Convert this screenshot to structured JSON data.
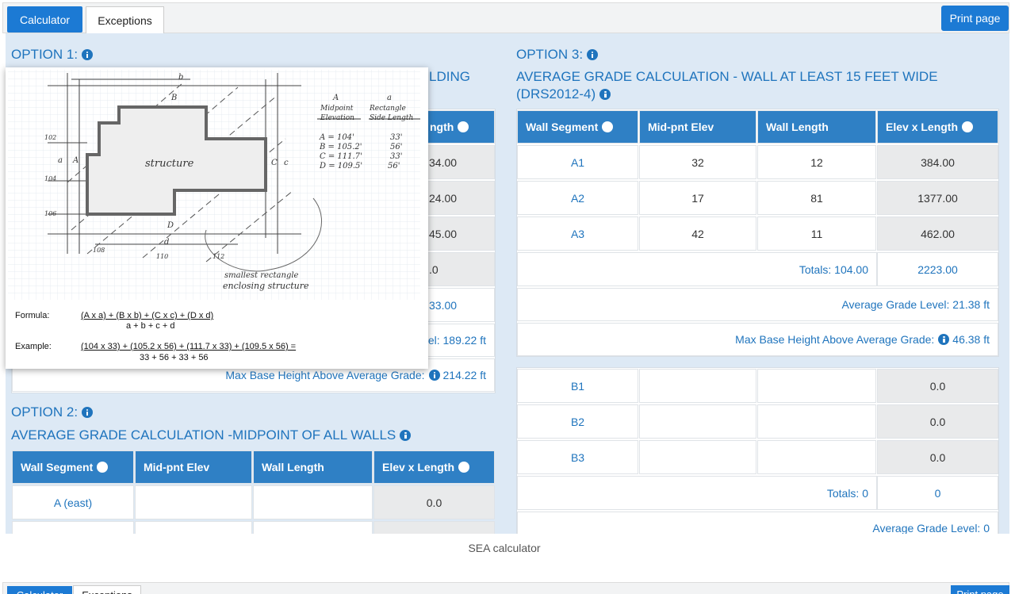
{
  "tabs": [
    "Calculator",
    "Exceptions"
  ],
  "print_button": "Print page",
  "option1": {
    "heading": "OPTION 1:",
    "title_fragment": "LDING",
    "header_fragment": "ngth",
    "cell_fragments": [
      "34.00",
      "24.00",
      "45.00",
      ".0"
    ],
    "totals_fragment": "33.00",
    "average_fragment": "el: 189.22 ft",
    "max_base_label": "Max Base Height Above Average Grade:",
    "max_base_value": "214.22 ft"
  },
  "popover": {
    "sketch": {
      "walls": [
        "A",
        "B",
        "C",
        "D"
      ],
      "rect_sides": [
        "a",
        "b",
        "c",
        "d"
      ],
      "structure": "structure",
      "elevations": [
        "102",
        "104",
        "106",
        "108",
        "110",
        "112"
      ],
      "legend_wall_heading": [
        "A",
        "Midpoint",
        "Elevation"
      ],
      "legend_side_heading": [
        "a",
        "Rectangle",
        "Side Length"
      ],
      "legend_walls": [
        "A = 104'",
        "B = 105.2'",
        "C = 111.7'",
        "D = 109.5'"
      ],
      "legend_sides": [
        "33'",
        "56'",
        "33'",
        "56'"
      ],
      "note": [
        "smallest rectangle",
        "enclosing structure"
      ]
    },
    "formula_label": "Formula:",
    "formula_numerator": "(A x a) + (B x b) + (C x c) + (D x d)",
    "formula_denominator": "a + b + c + d",
    "example_label": "Example:",
    "example_numerator": "(104 x 33) + (105.2 x 56) + (111.7 x 33) + (109.5 x 56) =",
    "example_denominator": "33 + 56 + 33 + 56"
  },
  "option2": {
    "heading": "OPTION 2:",
    "title": "AVERAGE GRADE CALCULATION -MIDPOINT OF ALL WALLS",
    "columns": [
      "Wall Segment",
      "Mid-pnt Elev",
      "Wall Length",
      "Elev x Length"
    ],
    "rows": [
      {
        "segment": "A (east)",
        "product": "0.0"
      }
    ]
  },
  "option3": {
    "heading": "OPTION 3:",
    "title": "AVERAGE GRADE CALCULATION - WALL AT LEAST 15 FEET WIDE",
    "title_code": "(DRS2012-4)",
    "columns": [
      "Wall Segment",
      "Mid-pnt Elev",
      "Wall Length",
      "Elev x Length"
    ],
    "table_a": {
      "rows": [
        [
          "A1",
          "32",
          "12",
          "384.00"
        ],
        [
          "A2",
          "17",
          "81",
          "1377.00"
        ],
        [
          "A3",
          "42",
          "11",
          "462.00"
        ]
      ],
      "totals_label": "Totals: 104.00",
      "totals_value": "2223.00",
      "average": "Average Grade Level: 21.38 ft",
      "max_base_label": "Max Base Height Above Average Grade:",
      "max_base_value": "46.38 ft"
    },
    "table_b": {
      "rows": [
        {
          "segment": "B1",
          "product": "0.0"
        },
        {
          "segment": "B2",
          "product": "0.0"
        },
        {
          "segment": "B3",
          "product": "0.0"
        }
      ],
      "totals_label": "Totals: 0",
      "totals_value": "0",
      "average": "Average Grade Level: 0"
    }
  },
  "caption": "SEA calculator",
  "next_screenshot": {
    "tabs": [
      "Calculator",
      "Exceptions"
    ],
    "print_button": "Print page"
  }
}
